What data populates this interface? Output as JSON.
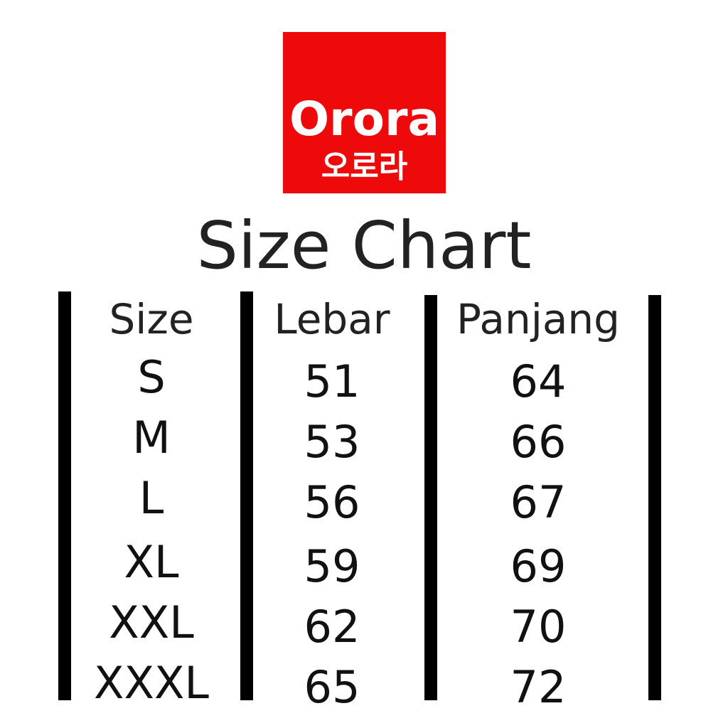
{
  "logo": {
    "brand": "Orora",
    "brand_korean": "오로라",
    "background_color": "#ee0a0a"
  },
  "title": "Size Chart",
  "table": {
    "headers": [
      "Size",
      "Lebar",
      "Panjang"
    ],
    "rows": [
      [
        "S",
        "51",
        "64"
      ],
      [
        "M",
        "53",
        "66"
      ],
      [
        "L",
        "56",
        "67"
      ],
      [
        "XL",
        "59",
        "69"
      ],
      [
        "XXL",
        "62",
        "70"
      ],
      [
        "XXXL",
        "65",
        "72"
      ]
    ]
  }
}
